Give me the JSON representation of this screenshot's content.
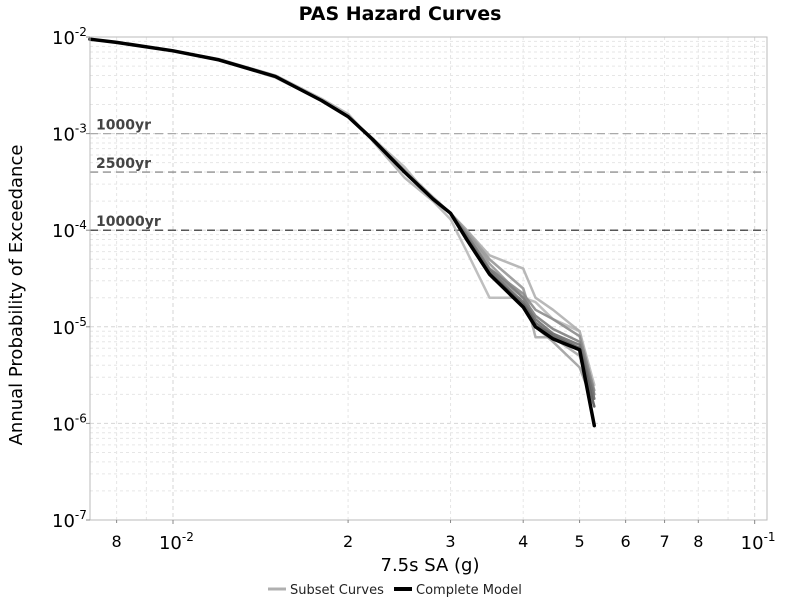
{
  "chart_data": {
    "type": "line",
    "title": "PAS Hazard Curves",
    "xlabel": "7.5s SA (g)",
    "ylabel": "Annual Probability of Exceedance",
    "xscale": "log",
    "yscale": "log",
    "xlim": [
      0.0072,
      0.105
    ],
    "ylim": [
      1e-07,
      0.01
    ],
    "grid": true,
    "legend_placement": "bottom-center",
    "x_ticks_major": [
      {
        "value": 0.01,
        "base": "10",
        "exp": "-2"
      },
      {
        "value": 0.1,
        "base": "10",
        "exp": "-1"
      }
    ],
    "x_ticks_minor": [
      {
        "value": 0.008,
        "label": "8"
      },
      {
        "value": 0.02,
        "label": "2"
      },
      {
        "value": 0.03,
        "label": "3"
      },
      {
        "value": 0.04,
        "label": "4"
      },
      {
        "value": 0.05,
        "label": "5"
      },
      {
        "value": 0.06,
        "label": "6"
      },
      {
        "value": 0.07,
        "label": "7"
      },
      {
        "value": 0.08,
        "label": "8"
      }
    ],
    "y_ticks": [
      {
        "value": 0.01,
        "base": "10",
        "exp": "-2"
      },
      {
        "value": 0.001,
        "base": "10",
        "exp": "-3"
      },
      {
        "value": 0.0001,
        "base": "10",
        "exp": "-4"
      },
      {
        "value": 1e-05,
        "base": "10",
        "exp": "-5"
      },
      {
        "value": 1e-06,
        "base": "10",
        "exp": "-6"
      },
      {
        "value": 1e-07,
        "base": "10",
        "exp": "-7"
      }
    ],
    "return_periods": [
      {
        "label": "1000yr",
        "value": 0.001,
        "color": "#aaaaaa"
      },
      {
        "label": "2500yr",
        "value": 0.0004,
        "color": "#777777"
      },
      {
        "label": "10000yr",
        "value": 0.0001,
        "color": "#222222"
      }
    ],
    "legend": [
      {
        "label": "Subset Curves",
        "color": "#b0b0b0"
      },
      {
        "label": "Complete Model",
        "color": "#000000"
      }
    ],
    "series": [
      {
        "kind": "subset",
        "color": "#b8b8b8",
        "x": [
          0.0072,
          0.008,
          0.01,
          0.012,
          0.015,
          0.018,
          0.02,
          0.022,
          0.025,
          0.028,
          0.03,
          0.032,
          0.035,
          0.04,
          0.042,
          0.045,
          0.05,
          0.053
        ],
        "y": [
          0.0095,
          0.0088,
          0.0072,
          0.0058,
          0.0038,
          0.0022,
          0.0015,
          0.0009,
          0.00045,
          0.0002,
          0.00013,
          6e-05,
          2e-05,
          2e-05,
          1.8e-05,
          1.2e-05,
          9e-06,
          2.5e-06
        ]
      },
      {
        "kind": "subset",
        "color": "#b0b0b0",
        "x": [
          0.0072,
          0.008,
          0.01,
          0.012,
          0.015,
          0.018,
          0.02,
          0.022,
          0.025,
          0.028,
          0.03,
          0.032,
          0.035,
          0.04,
          0.042,
          0.045,
          0.05,
          0.053
        ],
        "y": [
          0.0095,
          0.0088,
          0.0072,
          0.0059,
          0.004,
          0.0023,
          0.0016,
          0.00085,
          0.00035,
          0.0002,
          0.00015,
          0.0001,
          5.5e-05,
          4e-05,
          2e-05,
          1.5e-05,
          9e-06,
          2e-06
        ]
      },
      {
        "kind": "subset",
        "color": "#a8a8a8",
        "x": [
          0.0072,
          0.008,
          0.01,
          0.012,
          0.015,
          0.018,
          0.02,
          0.022,
          0.025,
          0.028,
          0.03,
          0.032,
          0.035,
          0.04,
          0.042,
          0.045,
          0.05,
          0.053
        ],
        "y": [
          0.0095,
          0.0088,
          0.0072,
          0.0058,
          0.0039,
          0.0022,
          0.0015,
          0.0009,
          0.00042,
          0.00022,
          0.00015,
          0.0001,
          5e-05,
          2.5e-05,
          7.8e-06,
          7.8e-06,
          5e-06,
          1.5e-06
        ]
      },
      {
        "kind": "subset",
        "color": "#a0a0a0",
        "x": [
          0.0072,
          0.008,
          0.01,
          0.012,
          0.015,
          0.018,
          0.02,
          0.022,
          0.025,
          0.028,
          0.03,
          0.032,
          0.035,
          0.04,
          0.042,
          0.045,
          0.05,
          0.053
        ],
        "y": [
          0.0095,
          0.0088,
          0.0072,
          0.0058,
          0.0039,
          0.0022,
          0.0015,
          0.00088,
          0.0004,
          0.00021,
          0.00015,
          9.5e-05,
          5e-05,
          2.5e-05,
          1e-05,
          7e-06,
          3.8e-06,
          1.5e-06
        ]
      },
      {
        "kind": "subset",
        "color": "#989898",
        "x": [
          0.0072,
          0.008,
          0.01,
          0.012,
          0.015,
          0.018,
          0.02,
          0.022,
          0.025,
          0.028,
          0.03,
          0.032,
          0.035,
          0.04,
          0.042,
          0.045,
          0.05,
          0.053
        ],
        "y": [
          0.0095,
          0.0088,
          0.0072,
          0.0058,
          0.0039,
          0.0022,
          0.0015,
          0.00088,
          0.0004,
          0.00021,
          0.00015,
          9.5e-05,
          4.5e-05,
          2e-05,
          1e-05,
          8.5e-06,
          6e-06,
          1.8e-06
        ]
      },
      {
        "kind": "subset",
        "color": "#8c8c8c",
        "x": [
          0.0072,
          0.008,
          0.01,
          0.012,
          0.015,
          0.018,
          0.02,
          0.022,
          0.025,
          0.028,
          0.03,
          0.032,
          0.035,
          0.04,
          0.042,
          0.045,
          0.05,
          0.053
        ],
        "y": [
          0.0095,
          0.0088,
          0.0072,
          0.0058,
          0.0039,
          0.0022,
          0.0015,
          0.00088,
          0.0004,
          0.00021,
          0.00015,
          9e-05,
          4e-05,
          2.2e-05,
          1.5e-05,
          1.2e-05,
          8e-06,
          2.2e-06
        ]
      },
      {
        "kind": "subset",
        "color": "#808080",
        "x": [
          0.0072,
          0.008,
          0.01,
          0.012,
          0.015,
          0.018,
          0.02,
          0.022,
          0.025,
          0.028,
          0.03,
          0.032,
          0.035,
          0.04,
          0.042,
          0.045,
          0.05,
          0.053
        ],
        "y": [
          0.0095,
          0.0088,
          0.0072,
          0.0058,
          0.0039,
          0.0022,
          0.0015,
          0.00088,
          0.0004,
          0.00021,
          0.00015,
          9e-05,
          4e-05,
          2e-05,
          1.3e-05,
          9.5e-06,
          7e-06,
          2e-06
        ]
      },
      {
        "kind": "subset",
        "color": "#707070",
        "x": [
          0.0072,
          0.008,
          0.01,
          0.012,
          0.015,
          0.018,
          0.02,
          0.022,
          0.025,
          0.028,
          0.03,
          0.032,
          0.035,
          0.04,
          0.042,
          0.045,
          0.05,
          0.053
        ],
        "y": [
          0.0095,
          0.0088,
          0.0072,
          0.0058,
          0.0039,
          0.0022,
          0.0015,
          0.00088,
          0.0004,
          0.00021,
          0.00015,
          8.5e-05,
          3.8e-05,
          1.8e-05,
          1.2e-05,
          8.5e-06,
          6.5e-06,
          1.8e-06
        ]
      },
      {
        "kind": "subset",
        "color": "#606060",
        "x": [
          0.0072,
          0.008,
          0.01,
          0.012,
          0.015,
          0.018,
          0.02,
          0.022,
          0.025,
          0.028,
          0.03,
          0.032,
          0.035,
          0.04,
          0.042,
          0.045,
          0.05,
          0.053
        ],
        "y": [
          0.0095,
          0.0088,
          0.0072,
          0.0058,
          0.0039,
          0.0022,
          0.0015,
          0.00088,
          0.0004,
          0.00021,
          0.00015,
          8.2e-05,
          3.6e-05,
          1.7e-05,
          1.1e-05,
          8e-06,
          6e-06,
          1.5e-06
        ]
      },
      {
        "kind": "complete",
        "color": "#000000",
        "x": [
          0.0072,
          0.008,
          0.01,
          0.012,
          0.015,
          0.018,
          0.02,
          0.022,
          0.025,
          0.028,
          0.03,
          0.032,
          0.035,
          0.04,
          0.042,
          0.045,
          0.05,
          0.053
        ],
        "y": [
          0.0095,
          0.0088,
          0.0072,
          0.0058,
          0.0039,
          0.0022,
          0.0015,
          0.00088,
          0.0004,
          0.00021,
          0.00015,
          8e-05,
          3.5e-05,
          1.6e-05,
          1e-05,
          7.5e-06,
          5.8e-06,
          9.5e-07
        ]
      }
    ]
  }
}
